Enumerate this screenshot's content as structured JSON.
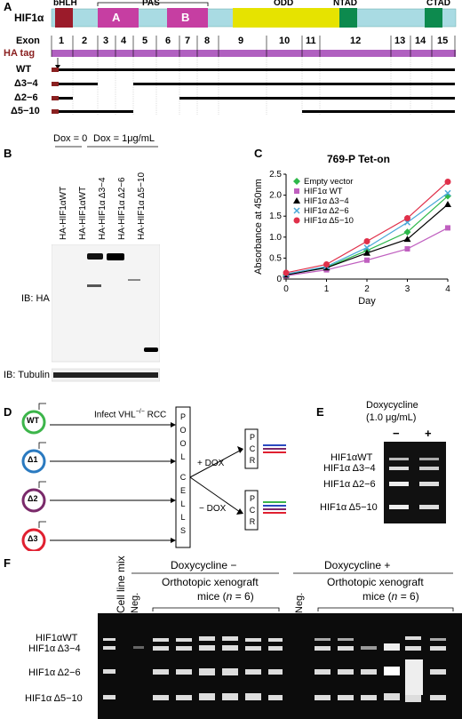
{
  "panel_letters": {
    "a": "A",
    "b": "B",
    "c": "C",
    "d": "D",
    "e": "E",
    "f": "F"
  },
  "panel_a": {
    "protein": "HIF1α",
    "domains": {
      "bhlh": "bHLH",
      "pas": "PAS",
      "pas_a": "A",
      "pas_b": "B",
      "odd": "ODD",
      "ntad": "NTAD",
      "ctad": "CTAD"
    },
    "exon_label": "Exon",
    "exons": [
      "1",
      "2",
      "3",
      "4",
      "5",
      "6",
      "7",
      "8",
      "9",
      "10",
      "11",
      "12",
      "13",
      "14",
      "15"
    ],
    "ha_tag": "HA tag",
    "constructs": [
      "WT",
      "Δ3−4",
      "Δ2−6",
      "Δ5−10"
    ],
    "colors": {
      "bhlh": "#9b1b2a",
      "pas": "#c63ea2",
      "odd": "#e6e300",
      "ntad": "#0d8a4e",
      "ctad": "#0d8a4e",
      "bar": "#a9dbe3",
      "exon_bar": "#b060c0",
      "ha": "#8a2020"
    }
  },
  "panel_b": {
    "dox0": "Dox = 0",
    "dox1": "Dox = 1μg/mL",
    "lanes": [
      "HA-HIF1αWT",
      "HA-HIF1αWT",
      "HA-HIF1α Δ3−4",
      "HA-HIF1α Δ2−6",
      "HA-HIF1α Δ5−10"
    ],
    "ib_ha": "IB: HA",
    "ib_tubulin": "IB: Tubulin"
  },
  "panel_c": {
    "chart_data": {
      "type": "line",
      "title": "769-P Tet-on",
      "xlabel": "Day",
      "ylabel": "Absorbance at 450nm",
      "x": [
        0,
        1,
        2,
        3,
        4
      ],
      "xlim": [
        0,
        4
      ],
      "ylim": [
        0,
        2.5
      ],
      "yticks": [
        0,
        0.5,
        1.0,
        1.5,
        2.0,
        2.5
      ],
      "legend_position": "top-left",
      "series": [
        {
          "name": "Empty vector",
          "color": "#2db84a",
          "marker": "diamond",
          "values": [
            0.1,
            0.28,
            0.68,
            1.12,
            1.98
          ]
        },
        {
          "name": "HIF1α WT",
          "color": "#c060c0",
          "marker": "square",
          "values": [
            0.08,
            0.22,
            0.45,
            0.72,
            1.22
          ]
        },
        {
          "name": "HIF1α Δ3−4",
          "color": "#000000",
          "marker": "triangle",
          "values": [
            0.1,
            0.27,
            0.62,
            0.95,
            1.78
          ]
        },
        {
          "name": "HIF1α Δ2−6",
          "color": "#4aa8d8",
          "marker": "x",
          "values": [
            0.12,
            0.3,
            0.75,
            1.35,
            2.05
          ]
        },
        {
          "name": "HIF1α Δ5−10",
          "color": "#e0304a",
          "marker": "circle",
          "values": [
            0.15,
            0.35,
            0.9,
            1.45,
            2.32
          ]
        }
      ]
    }
  },
  "panel_d": {
    "infect_text": "Infect VHL",
    "infect_sup": "−/−",
    "infect_rcc": "RCC",
    "circles": [
      "WT",
      "Δ1",
      "Δ2",
      "Δ3"
    ],
    "pool_text": [
      "P",
      "O",
      "O",
      "L",
      "",
      "C",
      "E",
      "L",
      "L",
      "S"
    ],
    "plus_dox": "+ DOX",
    "minus_dox": "− DOX",
    "pcr": [
      "P",
      "C",
      "R"
    ]
  },
  "panel_e": {
    "title_line1": "Doxycycline",
    "title_line2": "(1.0 μg/mL)",
    "minus": "−",
    "plus": "+",
    "bands": [
      "HIF1αWT",
      "HIF1α Δ3−4",
      "HIF1α Δ2−6",
      "HIF1α Δ5−10"
    ]
  },
  "panel_f": {
    "dox_minus": "Doxycycline −",
    "dox_plus": "Doxycycline +",
    "cell_line_mix": "Cell line mix",
    "neg": "Neg.",
    "xenograft_line1": "Orthotopic xenograft",
    "xenograft_line2_pre": "mice (",
    "xenograft_n": "n",
    "xenograft_line2_post": " = 6)",
    "bands": [
      "HIF1αWT",
      "HIF1α Δ3−4",
      "HIF1α Δ2−6",
      "HIF1α Δ5−10"
    ]
  }
}
